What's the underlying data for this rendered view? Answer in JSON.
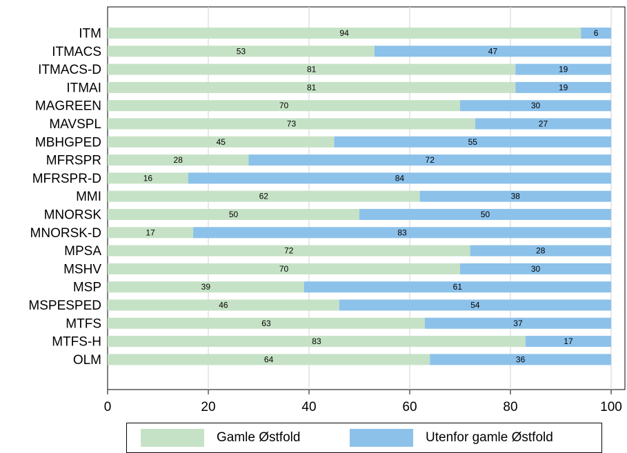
{
  "chart_data": {
    "type": "bar",
    "orientation": "horizontal",
    "stacked": true,
    "categories": [
      "ITM",
      "ITMACS",
      "ITMACS-D",
      "ITMAI",
      "MAGREEN",
      "MAVSPL",
      "MBHGPED",
      "MFRSPR",
      "MFRSPR-D",
      "MMI",
      "MNORSK",
      "MNORSK-D",
      "MPSA",
      "MSHV",
      "MSP",
      "MSPESPED",
      "MTFS",
      "MTFS-H",
      "OLM"
    ],
    "series": [
      {
        "name": "Gamle Østfold",
        "color": "#c6e2c6",
        "values": [
          94,
          53,
          81,
          81,
          70,
          73,
          45,
          28,
          16,
          62,
          50,
          17,
          72,
          70,
          39,
          46,
          63,
          83,
          64
        ]
      },
      {
        "name": "Utenfor gamle Østfold",
        "color": "#8cc1ea",
        "values": [
          6,
          47,
          19,
          19,
          30,
          27,
          55,
          72,
          84,
          38,
          50,
          83,
          28,
          30,
          61,
          54,
          37,
          17,
          36
        ]
      }
    ],
    "xlim": [
      0,
      100
    ],
    "xticks": [
      0,
      20,
      40,
      60,
      80,
      100
    ],
    "grid": true,
    "legend_position": "bottom",
    "title": "",
    "xlabel": "",
    "ylabel": ""
  }
}
